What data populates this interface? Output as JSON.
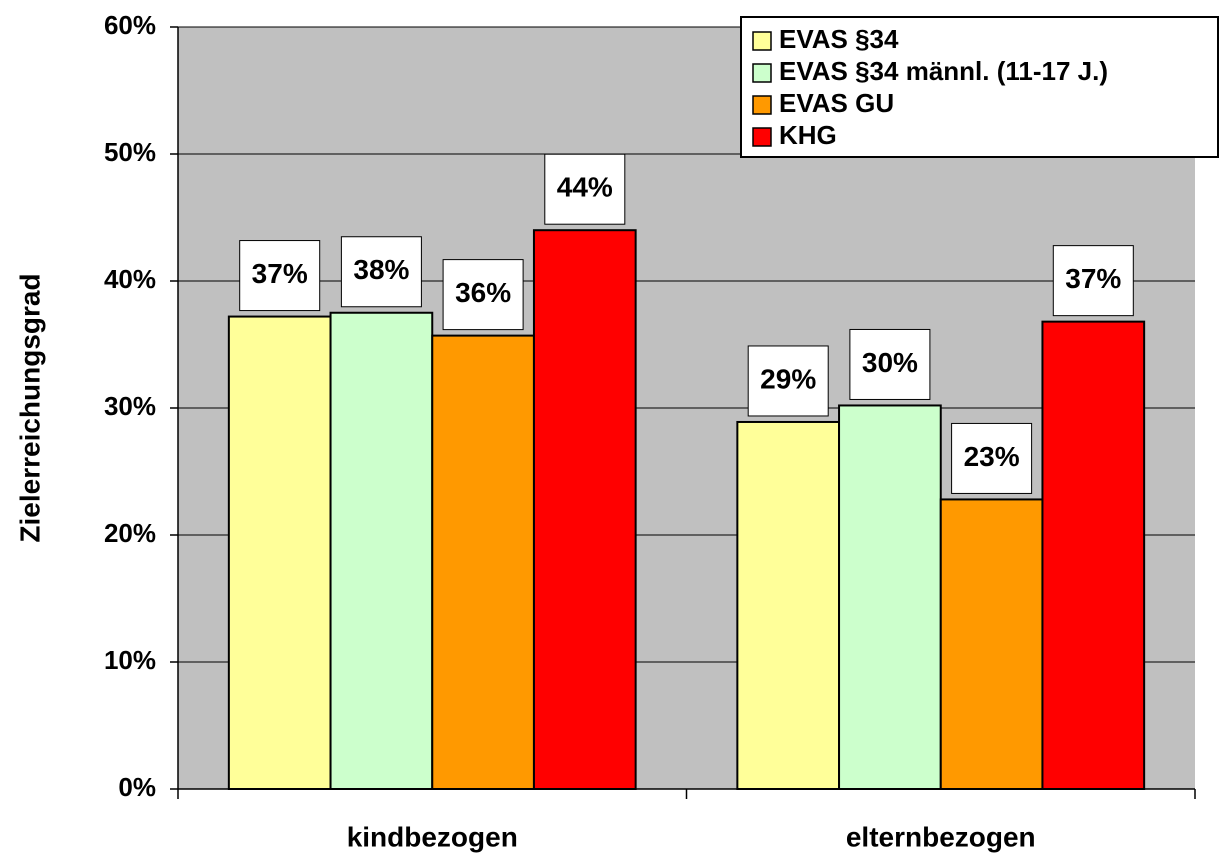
{
  "chart_data": {
    "type": "bar",
    "y_axis_label": "Zielerreichungsgrad",
    "categories": [
      "kindbezogen",
      "elternbezogen"
    ],
    "series": [
      {
        "name": "EVAS §34",
        "color": "#ffff99",
        "values": [
          37.2,
          28.9
        ],
        "value_labels": [
          "37%",
          "29%"
        ]
      },
      {
        "name": "EVAS §34 männl. (11-17 J.)",
        "color": "#ccffcc",
        "values": [
          37.5,
          30.2
        ],
        "value_labels": [
          "38%",
          "30%"
        ]
      },
      {
        "name": "EVAS GU",
        "color": "#ff9900",
        "values": [
          35.7,
          22.8
        ],
        "value_labels": [
          "36%",
          "23%"
        ]
      },
      {
        "name": "KHG",
        "color": "#ff0000",
        "values": [
          44,
          36.8
        ],
        "value_labels": [
          "44%",
          "37%"
        ]
      }
    ],
    "ylim": [
      0,
      60
    ],
    "yticks": [
      {
        "value": 0,
        "label": "0%"
      },
      {
        "value": 10,
        "label": "10%"
      },
      {
        "value": 20,
        "label": "20%"
      },
      {
        "value": 30,
        "label": "30%"
      },
      {
        "value": 40,
        "label": "40%"
      },
      {
        "value": 50,
        "label": "50%"
      },
      {
        "value": 60,
        "label": "60%"
      }
    ],
    "grid": true,
    "legend": "top-right"
  }
}
